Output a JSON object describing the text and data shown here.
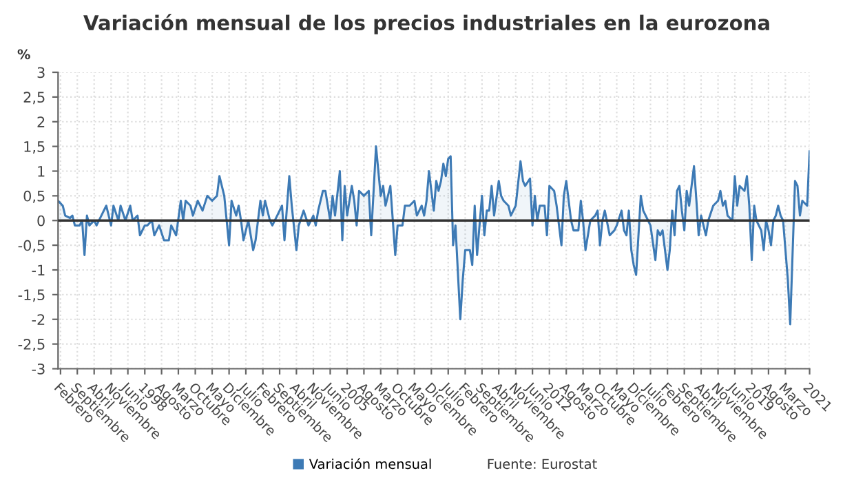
{
  "chart_data": {
    "type": "area",
    "title": "Variación mensual de los precios industriales en la eurozona",
    "ylabel": "%",
    "annotations": [
      "Fuente: Eurostat"
    ],
    "x": [
      "1995-01",
      "1995-03",
      "1995-04",
      "1995-06",
      "1995-07",
      "1995-08",
      "1995-10",
      "1995-11",
      "1995-12",
      "1996-01",
      "1996-02",
      "1996-04",
      "1996-05",
      "1996-07",
      "1996-09",
      "1996-11",
      "1996-12",
      "1997-02",
      "1997-03",
      "1997-05",
      "1997-07",
      "1997-08",
      "1997-10",
      "1997-11",
      "1998-01",
      "1998-02",
      "1998-04",
      "1998-05",
      "1998-07",
      "1998-09",
      "1998-11",
      "1998-12",
      "1999-02",
      "1999-04",
      "1999-05",
      "1999-06",
      "1999-08",
      "1999-09",
      "1999-11",
      "2000-01",
      "2000-03",
      "2000-05",
      "2000-07",
      "2000-08",
      "2000-10",
      "2000-12",
      "2001-01",
      "2001-03",
      "2001-04",
      "2001-05",
      "2001-06",
      "2001-08",
      "2001-10",
      "2001-11",
      "2002-01",
      "2002-02",
      "2002-03",
      "2002-05",
      "2002-06",
      "2002-08",
      "2002-10",
      "2002-11",
      "2003-01",
      "2003-02",
      "2003-04",
      "2003-05",
      "2003-07",
      "2003-09",
      "2003-11",
      "2003-12",
      "2004-01",
      "2004-03",
      "2004-04",
      "2004-06",
      "2004-07",
      "2004-08",
      "2004-10",
      "2004-11",
      "2004-12",
      "2005-01",
      "2005-03",
      "2005-04",
      "2005-05",
      "2005-06",
      "2005-08",
      "2005-10",
      "2005-11",
      "2006-01",
      "2006-03",
      "2006-04",
      "2006-05",
      "2006-07",
      "2006-09",
      "2006-10",
      "2006-12",
      "2007-01",
      "2007-03",
      "2007-05",
      "2007-06",
      "2007-08",
      "2007-09",
      "2007-10",
      "2007-11",
      "2008-01",
      "2008-02",
      "2008-03",
      "2008-04",
      "2008-05",
      "2008-06",
      "2008-07",
      "2008-08",
      "2008-09",
      "2008-10",
      "2008-12",
      "2009-01",
      "2009-02",
      "2009-04",
      "2009-05",
      "2009-06",
      "2009-07",
      "2009-09",
      "2009-10",
      "2009-11",
      "2009-12",
      "2010-01",
      "2010-02",
      "2010-04",
      "2010-05",
      "2010-06",
      "2010-08",
      "2010-09",
      "2010-11",
      "2011-01",
      "2011-02",
      "2011-03",
      "2011-05",
      "2011-06",
      "2011-07",
      "2011-08",
      "2011-09",
      "2011-11",
      "2011-12",
      "2012-01",
      "2012-03",
      "2012-04",
      "2012-06",
      "2012-07",
      "2012-08",
      "2012-10",
      "2012-11",
      "2013-01",
      "2013-02",
      "2013-03",
      "2013-04",
      "2013-06",
      "2013-08",
      "2013-09",
      "2013-10",
      "2013-11",
      "2013-12",
      "2014-02",
      "2014-04",
      "2014-05",
      "2014-07",
      "2014-08",
      "2014-09",
      "2014-10",
      "2014-11",
      "2014-12",
      "2015-01",
      "2015-03",
      "2015-04",
      "2015-06",
      "2015-07",
      "2015-09",
      "2015-10",
      "2015-11",
      "2015-12",
      "2016-02",
      "2016-03",
      "2016-04",
      "2016-05",
      "2016-06",
      "2016-07",
      "2016-08",
      "2016-09",
      "2016-10",
      "2016-11",
      "2017-01",
      "2017-02",
      "2017-03",
      "2017-04",
      "2017-06",
      "2017-07",
      "2017-09",
      "2017-11",
      "2017-12",
      "2018-01",
      "2018-02",
      "2018-03",
      "2018-05",
      "2018-06",
      "2018-07",
      "2018-08",
      "2018-10",
      "2018-11",
      "2018-12",
      "2019-01",
      "2019-02",
      "2019-03",
      "2019-05",
      "2019-06",
      "2019-07",
      "2019-08",
      "2019-09",
      "2019-10",
      "2019-11",
      "2019-12",
      "2020-01",
      "2020-02",
      "2020-04",
      "2020-05",
      "2020-07",
      "2020-08",
      "2020-09",
      "2020-10",
      "2020-12",
      "2021-01"
    ],
    "series": [
      {
        "name": "Variación mensual",
        "color": "#3d7ab5",
        "values": [
          0.4,
          0.3,
          0.1,
          0.05,
          0.1,
          -0.1,
          -0.1,
          0.0,
          -0.7,
          0.1,
          -0.1,
          0.0,
          -0.1,
          0.1,
          0.3,
          -0.1,
          0.3,
          0.0,
          0.3,
          0.0,
          0.3,
          0.0,
          0.1,
          -0.3,
          -0.1,
          -0.1,
          0.0,
          -0.3,
          -0.1,
          -0.4,
          -0.4,
          -0.1,
          -0.3,
          0.4,
          0.0,
          0.4,
          0.3,
          0.1,
          0.4,
          0.2,
          0.5,
          0.4,
          0.5,
          0.9,
          0.5,
          -0.5,
          0.4,
          0.1,
          0.3,
          0.0,
          -0.4,
          0.0,
          -0.6,
          -0.4,
          0.4,
          0.1,
          0.4,
          0.0,
          -0.1,
          0.1,
          0.3,
          -0.4,
          0.9,
          0.3,
          -0.6,
          -0.1,
          0.2,
          -0.1,
          0.1,
          -0.1,
          0.2,
          0.6,
          0.6,
          0.0,
          0.5,
          0.1,
          1.0,
          -0.4,
          0.7,
          0.1,
          0.7,
          0.4,
          -0.1,
          0.6,
          0.5,
          0.6,
          -0.3,
          1.5,
          0.5,
          0.7,
          0.3,
          0.7,
          -0.7,
          -0.1,
          -0.1,
          0.3,
          0.3,
          0.4,
          0.1,
          0.3,
          0.1,
          0.4,
          1.0,
          0.2,
          0.8,
          0.6,
          0.8,
          1.15,
          0.9,
          1.25,
          1.3,
          -0.5,
          -0.1,
          -2.0,
          -1.2,
          -0.6,
          -0.6,
          -0.9,
          0.3,
          -0.7,
          0.5,
          -0.3,
          0.2,
          0.2,
          0.7,
          0.1,
          0.8,
          0.5,
          0.4,
          0.3,
          0.1,
          0.3,
          1.2,
          0.8,
          0.7,
          0.85,
          -0.1,
          0.5,
          0.0,
          0.3,
          0.3,
          -0.3,
          0.7,
          0.6,
          0.3,
          -0.5,
          0.5,
          0.8,
          0.0,
          -0.2,
          -0.2,
          0.4,
          0.0,
          -0.6,
          0.0,
          0.1,
          0.2,
          -0.5,
          0.0,
          0.2,
          -0.3,
          -0.2,
          -0.1,
          0.2,
          -0.2,
          -0.3,
          0.2,
          -0.6,
          -0.9,
          -1.1,
          0.5,
          0.2,
          0.0,
          -0.1,
          -0.8,
          -0.2,
          -0.3,
          -0.2,
          -1.0,
          -0.6,
          0.2,
          -0.3,
          0.6,
          0.7,
          0.2,
          -0.2,
          0.6,
          0.3,
          1.1,
          0.4,
          -0.3,
          0.1,
          -0.3,
          0.0,
          0.3,
          0.4,
          0.6,
          0.3,
          0.4,
          0.1,
          0.0,
          0.9,
          0.3,
          0.7,
          0.6,
          0.9,
          0.3,
          -0.8,
          0.3,
          0.0,
          -0.2,
          -0.6,
          0.0,
          -0.2,
          -0.5,
          0.0,
          0.1,
          0.3,
          0.1,
          0.0,
          -1.2,
          -2.1,
          0.8,
          0.7,
          0.1,
          0.4,
          0.3,
          1.4
        ]
      }
    ],
    "xlim": [
      "1995-01",
      "2021-01"
    ],
    "xticks": [
      {
        "value": "1995-02",
        "label": "Febrero"
      },
      {
        "value": "1995-09",
        "label": "Septiembre"
      },
      {
        "value": "1996-04",
        "label": "Abril"
      },
      {
        "value": "1996-11",
        "label": "Noviembre"
      },
      {
        "value": "1997-06",
        "label": "Junio"
      },
      {
        "value": "1998-01",
        "label": "1998"
      },
      {
        "value": "1998-08",
        "label": "Agosto"
      },
      {
        "value": "1999-03",
        "label": "Marzo"
      },
      {
        "value": "1999-10",
        "label": "Octubre"
      },
      {
        "value": "2000-05",
        "label": "Mayo"
      },
      {
        "value": "2000-12",
        "label": "Diciembre"
      },
      {
        "value": "2001-07",
        "label": "Julio"
      },
      {
        "value": "2002-02",
        "label": "Febrero"
      },
      {
        "value": "2002-09",
        "label": "Septiembre"
      },
      {
        "value": "2003-04",
        "label": "Abril"
      },
      {
        "value": "2003-11",
        "label": "Noviembre"
      },
      {
        "value": "2004-06",
        "label": "Junio"
      },
      {
        "value": "2005-01",
        "label": "2005"
      },
      {
        "value": "2005-08",
        "label": "Agosto"
      },
      {
        "value": "2006-03",
        "label": "Marzo"
      },
      {
        "value": "2006-10",
        "label": "Octubre"
      },
      {
        "value": "2007-05",
        "label": "Mayo"
      },
      {
        "value": "2007-12",
        "label": "Diciembre"
      },
      {
        "value": "2008-07",
        "label": "Julio"
      },
      {
        "value": "2009-02",
        "label": "Febrero"
      },
      {
        "value": "2009-09",
        "label": "Septiembre"
      },
      {
        "value": "2010-04",
        "label": "Abril"
      },
      {
        "value": "2010-11",
        "label": "Noviembre"
      },
      {
        "value": "2011-06",
        "label": "Junio"
      },
      {
        "value": "2012-01",
        "label": "2012"
      },
      {
        "value": "2012-08",
        "label": "Agosto"
      },
      {
        "value": "2013-03",
        "label": "Marzo"
      },
      {
        "value": "2013-10",
        "label": "Octubre"
      },
      {
        "value": "2014-05",
        "label": "Mayo"
      },
      {
        "value": "2014-12",
        "label": "Diciembre"
      },
      {
        "value": "2015-07",
        "label": "Julio"
      },
      {
        "value": "2016-02",
        "label": "Febrero"
      },
      {
        "value": "2016-09",
        "label": "Septiembre"
      },
      {
        "value": "2017-04",
        "label": "Abril"
      },
      {
        "value": "2017-11",
        "label": "Noviembre"
      },
      {
        "value": "2018-06",
        "label": "Junio"
      },
      {
        "value": "2019-01",
        "label": "2019"
      },
      {
        "value": "2019-08",
        "label": "Agosto"
      },
      {
        "value": "2020-03",
        "label": "Marzo"
      },
      {
        "value": "2021-01",
        "label": "2021"
      }
    ],
    "ylim": [
      -3,
      3
    ],
    "yticks": [
      -3,
      {
        "value": -2.5,
        "label": "-2,5"
      },
      -2,
      {
        "value": -1.5,
        "label": "-1,5"
      },
      -1,
      {
        "value": -0.5,
        "label": "-0,5"
      },
      0,
      {
        "value": 0.5,
        "label": "0,5"
      },
      1,
      {
        "value": 1.5,
        "label": "1,5"
      },
      2,
      {
        "value": 2.5,
        "label": "2,5"
      },
      3
    ],
    "ref_lines": [
      {
        "axis": "y",
        "value": 0,
        "color": "#333333"
      }
    ],
    "grid": true,
    "legend": "bottom"
  }
}
